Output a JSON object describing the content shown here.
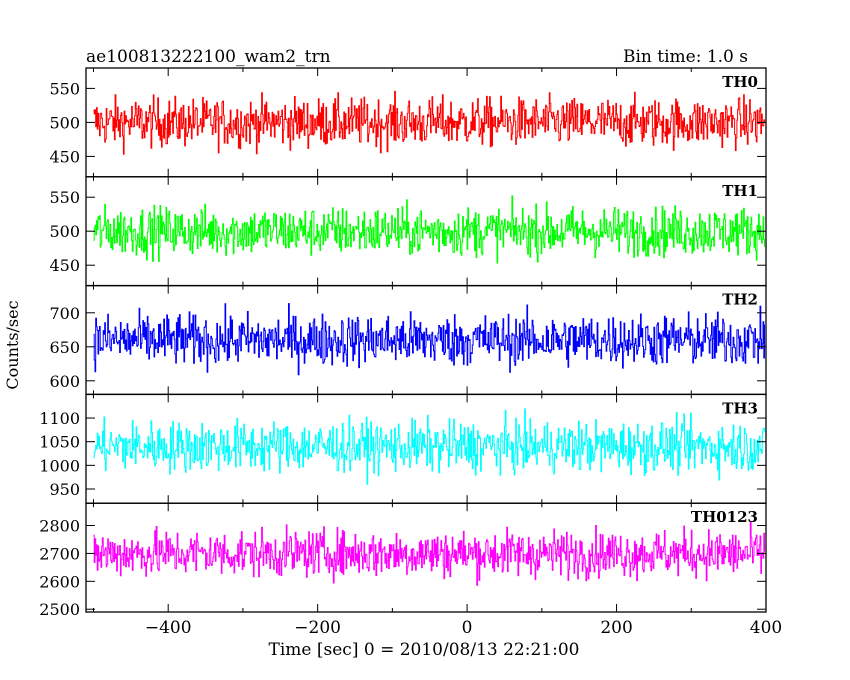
{
  "header": {
    "title": "ae100813222100_wam2_trn",
    "bin_time": "Bin time: 1.0 s"
  },
  "axes": {
    "ylabel": "Counts/sec",
    "xlabel": "Time [sec] 0 = 2010/08/13 22:21:00"
  },
  "chart_data": {
    "type": "line",
    "title": "ae100813222100_wam2_trn",
    "xlabel": "Time [sec] 0 = 2010/08/13 22:21:00",
    "ylabel": "Counts/sec",
    "xlim": [
      -510,
      400
    ],
    "x_ticks": [
      -400,
      -200,
      0,
      200,
      400
    ],
    "x_tick_labels": [
      "−400",
      "−200",
      "0",
      "200",
      "400"
    ],
    "bin_time_s": 1.0,
    "grid": false,
    "panels": [
      {
        "name": "TH0",
        "color": "#ff0000",
        "ylim": [
          420,
          580
        ],
        "yticks": [
          450,
          500,
          550
        ],
        "ytick_labels": [
          "450",
          "500",
          "550"
        ],
        "mean": 500,
        "spread": 30
      },
      {
        "name": "TH1",
        "color": "#00ff00",
        "ylim": [
          420,
          580
        ],
        "yticks": [
          450,
          500,
          550
        ],
        "ytick_labels": [
          "450",
          "500",
          "550"
        ],
        "mean": 500,
        "spread": 30
      },
      {
        "name": "TH2",
        "color": "#0000ff",
        "ylim": [
          580,
          740
        ],
        "yticks": [
          600,
          650,
          700
        ],
        "ytick_labels": [
          "600",
          "650",
          "700"
        ],
        "mean": 660,
        "spread": 32
      },
      {
        "name": "TH3",
        "color": "#00ffff",
        "ylim": [
          920,
          1150
        ],
        "yticks": [
          950,
          1000,
          1050,
          1100
        ],
        "ytick_labels": [
          "950",
          "1000",
          "1050",
          "1100"
        ],
        "mean": 1040,
        "spread": 45
      },
      {
        "name": "TH0123",
        "color": "#ff00ff",
        "ylim": [
          2490,
          2880
        ],
        "yticks": [
          2500,
          2600,
          2700,
          2800
        ],
        "ytick_labels": [
          "2500",
          "2600",
          "2700",
          "2800"
        ],
        "mean": 2700,
        "spread": 70
      }
    ]
  }
}
